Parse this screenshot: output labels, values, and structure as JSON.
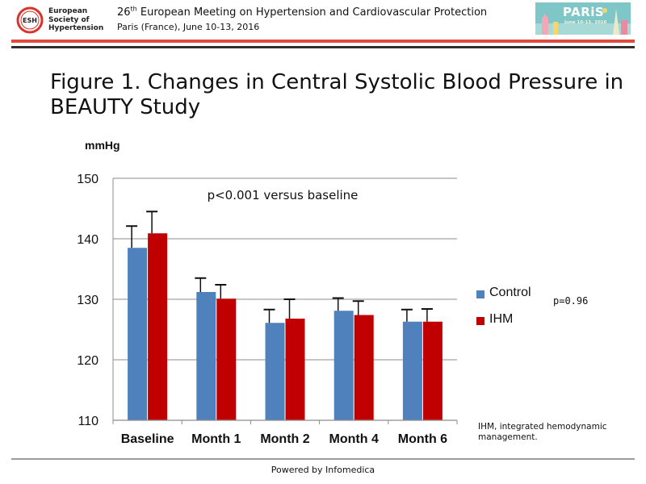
{
  "header": {
    "logo_lines": [
      "European",
      "Society of",
      "Hypertension"
    ],
    "logo_badge": "ESH",
    "meeting_ordinal": "26",
    "meeting_ordinal_suffix": "th",
    "meeting_title": " European Meeting on Hypertension and Cardiovascular Protection",
    "meeting_subtitle": "Paris (France), June 10-13, 2016",
    "paris_word": "PARiS",
    "paris_date": "June 10-13, 2016"
  },
  "slide": {
    "title": "Figure 1. Changes in Central Systolic Blood Pressure in BEAUTY Study"
  },
  "colors": {
    "control": "#4f81bd",
    "ihm": "#c00000",
    "grid": "#8c8c8c",
    "red_rule": "#e04a3f"
  },
  "chart_data": {
    "type": "bar",
    "ylabel": "mmHg",
    "ylim": [
      110,
      150
    ],
    "yticks": [
      110,
      120,
      130,
      140,
      150
    ],
    "categories": [
      "Baseline",
      "Month 1",
      "Month 2",
      "Month 4",
      "Month 6"
    ],
    "series": [
      {
        "name": "Control",
        "values": [
          138.5,
          131.2,
          126.1,
          128.1,
          126.3
        ],
        "errors": [
          3.6,
          2.3,
          2.2,
          2.1,
          2.0
        ]
      },
      {
        "name": "IHM",
        "values": [
          140.9,
          130.1,
          126.8,
          127.4,
          126.3
        ],
        "errors": [
          3.6,
          2.3,
          3.2,
          2.3,
          2.1
        ]
      }
    ],
    "annotation": "p<0.001 versus baseline",
    "grid": true,
    "legend_position": "right"
  },
  "side_notes": {
    "p_value": "p=0.96",
    "footnote": "IHM, integrated hemodynamic management."
  },
  "footer": {
    "powered_by": "Powered by Infomedica"
  }
}
